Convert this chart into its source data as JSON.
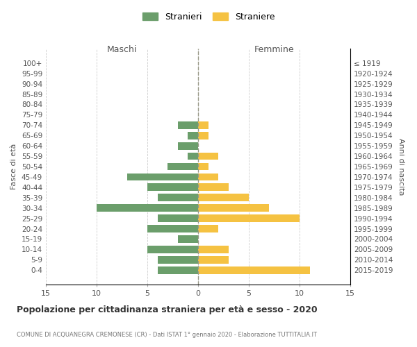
{
  "age_groups": [
    "100+",
    "95-99",
    "90-94",
    "85-89",
    "80-84",
    "75-79",
    "70-74",
    "65-69",
    "60-64",
    "55-59",
    "50-54",
    "45-49",
    "40-44",
    "35-39",
    "30-34",
    "25-29",
    "20-24",
    "15-19",
    "10-14",
    "5-9",
    "0-4"
  ],
  "birth_years": [
    "≤ 1919",
    "1920-1924",
    "1925-1929",
    "1930-1934",
    "1935-1939",
    "1940-1944",
    "1945-1949",
    "1950-1954",
    "1955-1959",
    "1960-1964",
    "1965-1969",
    "1970-1974",
    "1975-1979",
    "1980-1984",
    "1985-1989",
    "1990-1994",
    "1995-1999",
    "2000-2004",
    "2005-2009",
    "2010-2014",
    "2015-2019"
  ],
  "maschi": [
    0,
    0,
    0,
    0,
    0,
    0,
    2,
    1,
    2,
    1,
    3,
    7,
    5,
    4,
    10,
    4,
    5,
    2,
    5,
    4,
    4
  ],
  "femmine": [
    0,
    0,
    0,
    0,
    0,
    0,
    1,
    1,
    0,
    2,
    1,
    2,
    3,
    5,
    7,
    10,
    2,
    0,
    3,
    3,
    11
  ],
  "maschi_color": "#6b9e6b",
  "femmine_color": "#f5c242",
  "title": "Popolazione per cittadinanza straniera per età e sesso - 2020",
  "subtitle": "COMUNE DI ACQUANEGRA CREMONESE (CR) - Dati ISTAT 1° gennaio 2020 - Elaborazione TUTTITALIA.IT",
  "ylabel_left": "Fasce di età",
  "ylabel_right": "Anni di nascita",
  "xlabel_maschi": "Maschi",
  "xlabel_femmine": "Femmine",
  "legend_stranieri": "Stranieri",
  "legend_straniere": "Straniere",
  "xlim": 15,
  "background_color": "#ffffff",
  "grid_color": "#cccccc",
  "bar_height": 0.72
}
